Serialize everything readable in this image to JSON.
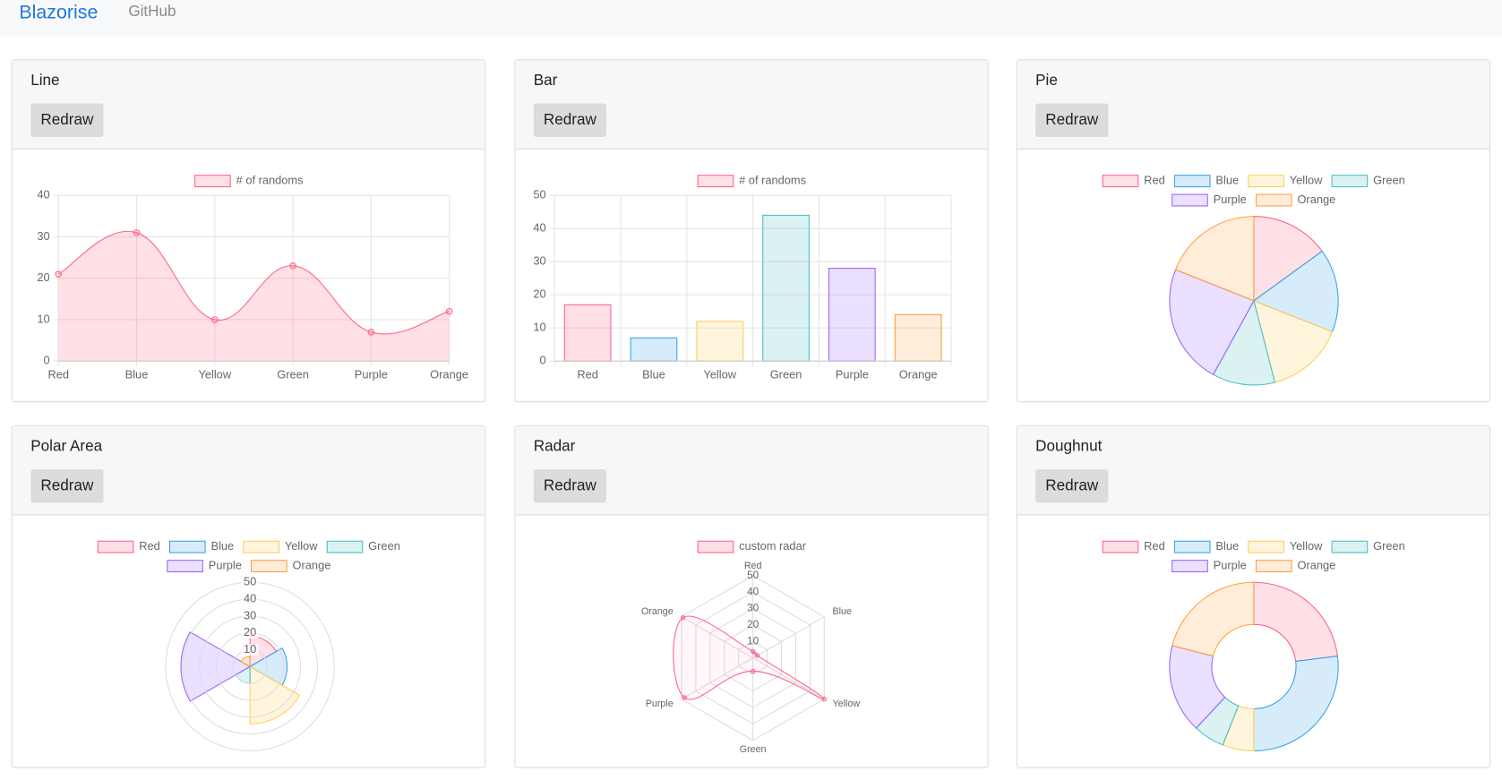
{
  "nav": {
    "brand": "Blazorise",
    "link": "GitHub"
  },
  "chart_data": [
    {
      "type": "line",
      "title": "Line",
      "button": "Redraw",
      "categories": [
        "Red",
        "Blue",
        "Yellow",
        "Green",
        "Purple",
        "Orange"
      ],
      "series": [
        {
          "name": "# of randoms",
          "color": "#ff6384",
          "values": [
            21,
            31,
            10,
            23,
            7,
            12
          ]
        }
      ],
      "ylim": [
        0,
        40
      ],
      "yticks": [
        0,
        10,
        20,
        30,
        40
      ],
      "grid": true
    },
    {
      "type": "bar",
      "title": "Bar",
      "button": "Redraw",
      "categories": [
        "Red",
        "Blue",
        "Yellow",
        "Green",
        "Purple",
        "Orange"
      ],
      "series": [
        {
          "name": "# of randoms",
          "color": "#ff6384",
          "colors": [
            "#ff6384",
            "#36a2eb",
            "#ffce56",
            "#4bc0c0",
            "#9966ff",
            "#ff9f40"
          ],
          "values": [
            17,
            7,
            12,
            44,
            28,
            14
          ]
        }
      ],
      "ylim": [
        0,
        50
      ],
      "yticks": [
        0,
        10,
        20,
        30,
        40,
        50
      ],
      "grid": true
    },
    {
      "type": "pie",
      "title": "Pie",
      "button": "Redraw",
      "categories": [
        "Red",
        "Blue",
        "Yellow",
        "Green",
        "Purple",
        "Orange"
      ],
      "colors": [
        "#ff6384",
        "#36a2eb",
        "#ffce56",
        "#4bc0c0",
        "#9966ff",
        "#ff9f40"
      ],
      "values": [
        15,
        16,
        15,
        12,
        23,
        19
      ]
    },
    {
      "type": "polarArea",
      "title": "Polar Area",
      "button": "Redraw",
      "categories": [
        "Red",
        "Blue",
        "Yellow",
        "Green",
        "Purple",
        "Orange"
      ],
      "colors": [
        "#ff6384",
        "#36a2eb",
        "#ffce56",
        "#4bc0c0",
        "#9966ff",
        "#ff9f40"
      ],
      "values": [
        18,
        22,
        34,
        10,
        41,
        6
      ],
      "rlim": [
        0,
        50
      ],
      "rticks": [
        10,
        20,
        30,
        40,
        50
      ]
    },
    {
      "type": "radar",
      "title": "Radar",
      "button": "Redraw",
      "categories": [
        "Red",
        "Blue",
        "Yellow",
        "Green",
        "Purple",
        "Orange"
      ],
      "series": [
        {
          "name": "custom radar",
          "color": "#ff6384",
          "values": [
            4,
            3,
            50,
            8,
            48,
            49
          ]
        }
      ],
      "rlim": [
        0,
        50
      ],
      "rticks": [
        10,
        20,
        30,
        40,
        50
      ]
    },
    {
      "type": "doughnut",
      "title": "Doughnut",
      "button": "Redraw",
      "categories": [
        "Red",
        "Blue",
        "Yellow",
        "Green",
        "Purple",
        "Orange"
      ],
      "colors": [
        "#ff6384",
        "#36a2eb",
        "#ffce56",
        "#4bc0c0",
        "#9966ff",
        "#ff9f40"
      ],
      "values": [
        23,
        27,
        6,
        6,
        17,
        21
      ]
    }
  ]
}
